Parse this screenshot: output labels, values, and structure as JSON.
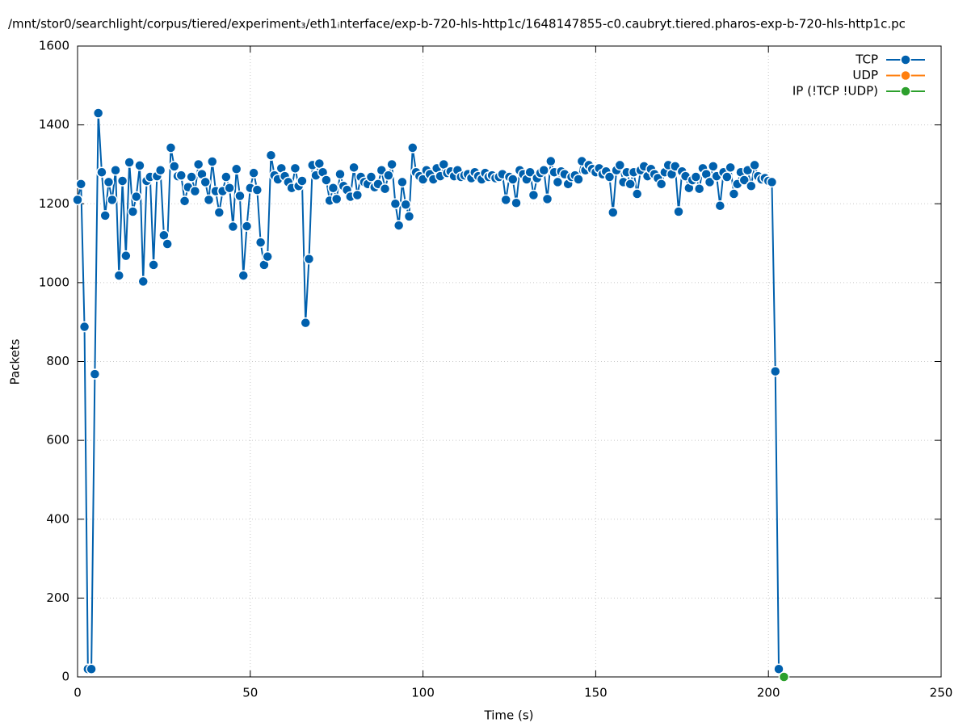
{
  "chart_data": {
    "type": "line",
    "title": "/mnt/stor0/searchlight/corpus/tiered/experiment₃/eth1ᵢnterface/exp-b-720-hls-http1c/1648147855-c0.caubryt.tiered.pharos-exp-b-720-hls-http1c.pc",
    "x_label": "Time (s)",
    "y_label": "Packets",
    "xlim": [
      0,
      250
    ],
    "xticks": [
      0,
      50,
      100,
      150,
      200,
      250
    ],
    "ylim": [
      0,
      1600
    ],
    "yticks": [
      0,
      200,
      400,
      600,
      800,
      1000,
      1200,
      1400,
      1600
    ],
    "grid": true,
    "legend": "top-right",
    "series": [
      {
        "name": "TCP",
        "color": "#0060ad",
        "x": [
          0,
          1,
          2,
          3,
          4,
          5,
          6,
          7,
          8,
          9,
          10,
          11,
          12,
          13,
          14,
          15,
          16,
          17,
          18,
          19,
          20,
          21,
          22,
          23,
          24,
          25,
          26,
          27,
          28,
          29,
          30,
          31,
          32,
          33,
          34,
          35,
          36,
          37,
          38,
          39,
          40,
          41,
          42,
          43,
          44,
          45,
          46,
          47,
          48,
          49,
          50,
          51,
          52,
          53,
          54,
          55,
          56,
          57,
          58,
          59,
          60,
          61,
          62,
          63,
          64,
          65,
          66,
          67,
          68,
          69,
          70,
          71,
          72,
          73,
          74,
          75,
          76,
          77,
          78,
          79,
          80,
          81,
          82,
          83,
          84,
          85,
          86,
          87,
          88,
          89,
          90,
          91,
          92,
          93,
          94,
          95,
          96,
          97,
          98,
          99,
          100,
          101,
          102,
          103,
          104,
          105,
          106,
          107,
          108,
          109,
          110,
          111,
          112,
          113,
          114,
          115,
          116,
          117,
          118,
          119,
          120,
          121,
          122,
          123,
          124,
          125,
          126,
          127,
          128,
          129,
          130,
          131,
          132,
          133,
          134,
          135,
          136,
          137,
          138,
          139,
          140,
          141,
          142,
          143,
          144,
          145,
          146,
          147,
          148,
          149,
          150,
          151,
          152,
          153,
          154,
          155,
          156,
          157,
          158,
          159,
          160,
          161,
          162,
          163,
          164,
          165,
          166,
          167,
          168,
          169,
          170,
          171,
          172,
          173,
          174,
          175,
          176,
          177,
          178,
          179,
          180,
          181,
          182,
          183,
          184,
          185,
          186,
          187,
          188,
          189,
          190,
          191,
          192,
          193,
          194,
          195,
          196,
          197,
          198,
          199,
          200,
          201,
          202,
          203
        ],
        "values": [
          1210,
          1250,
          888,
          20,
          20,
          768,
          1430,
          1280,
          1170,
          1255,
          1210,
          1285,
          1018,
          1258,
          1068,
          1305,
          1180,
          1218,
          1297,
          1003,
          1258,
          1268,
          1045,
          1270,
          1285,
          1120,
          1098,
          1342,
          1295,
          1270,
          1272,
          1207,
          1242,
          1268,
          1232,
          1300,
          1275,
          1255,
          1210,
          1307,
          1232,
          1178,
          1232,
          1268,
          1240,
          1142,
          1288,
          1220,
          1018,
          1143,
          1240,
          1278,
          1235,
          1102,
          1045,
          1066,
          1323,
          1272,
          1262,
          1290,
          1270,
          1255,
          1240,
          1290,
          1245,
          1258,
          898,
          1060,
          1298,
          1272,
          1302,
          1280,
          1260,
          1208,
          1240,
          1212,
          1275,
          1245,
          1235,
          1218,
          1292,
          1222,
          1268,
          1255,
          1250,
          1268,
          1242,
          1250,
          1285,
          1238,
          1272,
          1300,
          1200,
          1145,
          1255,
          1198,
          1168,
          1342,
          1280,
          1270,
          1262,
          1285,
          1275,
          1262,
          1290,
          1270,
          1300,
          1278,
          1282,
          1270,
          1285,
          1268,
          1272,
          1275,
          1265,
          1280,
          1270,
          1262,
          1278,
          1268,
          1272,
          1265,
          1268,
          1275,
          1210,
          1268,
          1262,
          1202,
          1285,
          1275,
          1262,
          1280,
          1222,
          1265,
          1278,
          1285,
          1212,
          1308,
          1280,
          1255,
          1282,
          1275,
          1250,
          1268,
          1272,
          1262,
          1308,
          1285,
          1298,
          1288,
          1280,
          1290,
          1275,
          1282,
          1268,
          1178,
          1285,
          1298,
          1255,
          1280,
          1250,
          1280,
          1225,
          1285,
          1295,
          1270,
          1288,
          1275,
          1265,
          1250,
          1280,
          1298,
          1275,
          1295,
          1180,
          1282,
          1270,
          1240,
          1260,
          1268,
          1238,
          1290,
          1275,
          1255,
          1295,
          1270,
          1195,
          1280,
          1268,
          1292,
          1225,
          1250,
          1280,
          1260,
          1285,
          1245,
          1298,
          1270,
          1262,
          1265,
          1258,
          1255,
          775,
          20
        ]
      },
      {
        "name": "UDP",
        "color": "#ff7f0e",
        "x": [],
        "values": []
      },
      {
        "name": "IP (!TCP  !UDP)",
        "color": "#2ca02c",
        "x": [
          204.5
        ],
        "values": [
          0
        ]
      }
    ]
  }
}
